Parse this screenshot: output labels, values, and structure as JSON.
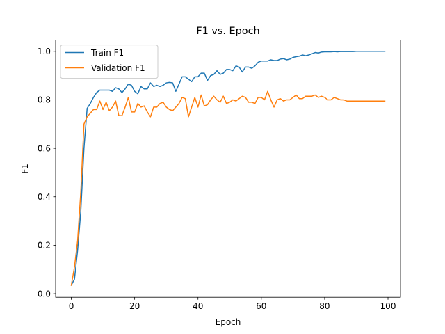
{
  "chart_data": {
    "type": "line",
    "title": "F1 vs. Epoch",
    "xlabel": "Epoch",
    "ylabel": "F1",
    "xlim": [
      -4.95,
      103.95
    ],
    "ylim": [
      -0.0148,
      1.0465
    ],
    "xticks": [
      0,
      20,
      40,
      60,
      80,
      100
    ],
    "yticks": [
      0.0,
      0.2,
      0.4,
      0.6,
      0.8,
      1.0
    ],
    "xtick_labels": [
      "0",
      "20",
      "40",
      "60",
      "80",
      "100"
    ],
    "ytick_labels": [
      "0.0",
      "0.2",
      "0.4",
      "0.6",
      "0.8",
      "1.0"
    ],
    "grid": false,
    "legend_position": "top-left",
    "x": [
      0,
      1,
      2,
      3,
      4,
      5,
      6,
      7,
      8,
      9,
      10,
      11,
      12,
      13,
      14,
      15,
      16,
      17,
      18,
      19,
      20,
      21,
      22,
      23,
      24,
      25,
      26,
      27,
      28,
      29,
      30,
      31,
      32,
      33,
      34,
      35,
      36,
      37,
      38,
      39,
      40,
      41,
      42,
      43,
      44,
      45,
      46,
      47,
      48,
      49,
      50,
      51,
      52,
      53,
      54,
      55,
      56,
      57,
      58,
      59,
      60,
      61,
      62,
      63,
      64,
      65,
      66,
      67,
      68,
      69,
      70,
      71,
      72,
      73,
      74,
      75,
      76,
      77,
      78,
      79,
      80,
      81,
      82,
      83,
      84,
      85,
      86,
      87,
      88,
      89,
      90,
      91,
      92,
      93,
      94,
      95,
      96,
      97,
      98,
      99
    ],
    "series": [
      {
        "name": "Train F1",
        "color": "#1f77b4",
        "values": [
          0.035,
          0.06,
          0.18,
          0.34,
          0.6,
          0.765,
          0.785,
          0.81,
          0.83,
          0.84,
          0.84,
          0.84,
          0.84,
          0.835,
          0.85,
          0.845,
          0.83,
          0.845,
          0.865,
          0.86,
          0.835,
          0.825,
          0.855,
          0.845,
          0.845,
          0.87,
          0.855,
          0.86,
          0.855,
          0.86,
          0.87,
          0.872,
          0.87,
          0.835,
          0.865,
          0.895,
          0.895,
          0.885,
          0.875,
          0.895,
          0.895,
          0.91,
          0.91,
          0.88,
          0.9,
          0.905,
          0.92,
          0.905,
          0.91,
          0.925,
          0.925,
          0.92,
          0.94,
          0.935,
          0.915,
          0.935,
          0.935,
          0.93,
          0.94,
          0.955,
          0.96,
          0.96,
          0.96,
          0.965,
          0.962,
          0.962,
          0.968,
          0.97,
          0.965,
          0.968,
          0.975,
          0.978,
          0.98,
          0.985,
          0.982,
          0.985,
          0.99,
          0.995,
          0.993,
          0.997,
          0.998,
          0.998,
          0.998,
          0.999,
          0.998,
          0.999,
          0.999,
          0.999,
          0.999,
          0.999,
          1.0,
          1.0,
          1.0,
          1.0,
          1.0,
          1.0,
          1.0,
          1.0,
          1.0,
          1.0
        ]
      },
      {
        "name": "Validation F1",
        "color": "#ff7f0e",
        "values": [
          0.035,
          0.11,
          0.22,
          0.42,
          0.7,
          0.73,
          0.745,
          0.76,
          0.76,
          0.795,
          0.76,
          0.79,
          0.755,
          0.77,
          0.795,
          0.735,
          0.735,
          0.77,
          0.81,
          0.75,
          0.75,
          0.785,
          0.77,
          0.775,
          0.75,
          0.73,
          0.77,
          0.77,
          0.785,
          0.79,
          0.77,
          0.76,
          0.755,
          0.77,
          0.785,
          0.81,
          0.805,
          0.73,
          0.77,
          0.81,
          0.77,
          0.82,
          0.775,
          0.78,
          0.8,
          0.815,
          0.8,
          0.79,
          0.815,
          0.785,
          0.79,
          0.8,
          0.795,
          0.805,
          0.815,
          0.81,
          0.79,
          0.79,
          0.785,
          0.81,
          0.81,
          0.8,
          0.835,
          0.8,
          0.77,
          0.8,
          0.805,
          0.795,
          0.8,
          0.8,
          0.81,
          0.82,
          0.805,
          0.805,
          0.815,
          0.815,
          0.815,
          0.82,
          0.81,
          0.815,
          0.81,
          0.8,
          0.8,
          0.81,
          0.805,
          0.8,
          0.8,
          0.795,
          0.795,
          0.795,
          0.795,
          0.795,
          0.795,
          0.795,
          0.795,
          0.795,
          0.795,
          0.795,
          0.795,
          0.795
        ]
      }
    ]
  }
}
